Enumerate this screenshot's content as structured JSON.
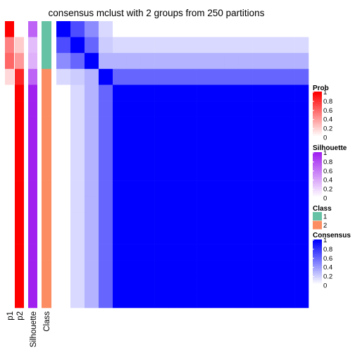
{
  "chart_data": {
    "type": "heatmap",
    "title": "consensus mclust with 2 groups from 250 partitions",
    "n_samples": 18,
    "annotation_columns": [
      "p1",
      "p2",
      "Silhouette",
      "Class"
    ],
    "annotations": {
      "p1": [
        1.0,
        0.5,
        0.6,
        0.15,
        0,
        0,
        0,
        0,
        0,
        0,
        0,
        0,
        0,
        0,
        0,
        0,
        0,
        0
      ],
      "p2": [
        0.0,
        0.2,
        0.4,
        0.85,
        1,
        1,
        1,
        1,
        1,
        1,
        1,
        1,
        1,
        1,
        1,
        1,
        1,
        1
      ],
      "Silhouette": [
        0.7,
        0.3,
        0.35,
        0.7,
        1,
        1,
        1,
        1,
        1,
        1,
        1,
        1,
        1,
        1,
        1,
        1,
        1,
        1
      ],
      "Class": [
        1,
        1,
        1,
        2,
        2,
        2,
        2,
        2,
        2,
        2,
        2,
        2,
        2,
        2,
        2,
        2,
        2,
        2
      ]
    },
    "consensus_columns": [
      [
        1.0,
        0.7,
        0.45,
        0.15,
        0,
        0,
        0,
        0,
        0,
        0,
        0,
        0,
        0,
        0,
        0,
        0,
        0,
        0
      ],
      [
        0.7,
        1.0,
        0.6,
        0.2,
        0.15,
        0.15,
        0.15,
        0.15,
        0.15,
        0.15,
        0.15,
        0.15,
        0.15,
        0.15,
        0.15,
        0.15,
        0.15,
        0.15
      ],
      [
        0.45,
        0.6,
        1.0,
        0.3,
        0.3,
        0.3,
        0.3,
        0.3,
        0.3,
        0.3,
        0.3,
        0.3,
        0.3,
        0.3,
        0.3,
        0.3,
        0.3,
        0.3
      ],
      [
        0.15,
        0.2,
        0.3,
        1.0,
        0.6,
        0.6,
        0.6,
        0.6,
        0.6,
        0.6,
        0.6,
        0.6,
        0.6,
        0.6,
        0.6,
        0.6,
        0.6,
        0.6
      ],
      [
        0,
        0.15,
        0.3,
        0.6,
        1,
        1,
        1,
        1,
        1,
        1,
        1,
        1,
        1,
        1,
        1,
        1,
        1,
        1
      ],
      [
        0,
        0.15,
        0.3,
        0.6,
        1,
        1,
        1,
        1,
        1,
        1,
        1,
        1,
        1,
        1,
        1,
        1,
        1,
        1
      ],
      [
        0,
        0.15,
        0.3,
        0.6,
        1,
        1,
        1,
        1,
        1,
        1,
        1,
        1,
        1,
        1,
        1,
        1,
        1,
        1
      ],
      [
        0,
        0.15,
        0.3,
        0.6,
        1,
        1,
        1,
        1,
        1,
        1,
        1,
        1,
        1,
        1,
        1,
        1,
        1,
        1
      ],
      [
        0,
        0.15,
        0.3,
        0.6,
        1,
        1,
        1,
        1,
        1,
        1,
        1,
        1,
        1,
        1,
        1,
        1,
        1,
        1
      ],
      [
        0,
        0.15,
        0.3,
        0.6,
        1,
        1,
        1,
        1,
        1,
        1,
        1,
        1,
        1,
        1,
        1,
        1,
        1,
        1
      ],
      [
        0,
        0.15,
        0.3,
        0.6,
        1,
        1,
        1,
        1,
        1,
        1,
        1,
        1,
        1,
        1,
        1,
        1,
        1,
        1
      ],
      [
        0,
        0.15,
        0.3,
        0.6,
        1,
        1,
        1,
        1,
        1,
        1,
        1,
        1,
        1,
        1,
        1,
        1,
        1,
        1
      ],
      [
        0,
        0.15,
        0.3,
        0.6,
        1,
        1,
        1,
        1,
        1,
        1,
        1,
        1,
        1,
        1,
        1,
        1,
        1,
        1
      ],
      [
        0,
        0.15,
        0.3,
        0.6,
        1,
        1,
        1,
        1,
        1,
        1,
        1,
        1,
        1,
        1,
        1,
        1,
        1,
        1
      ],
      [
        0,
        0.15,
        0.3,
        0.6,
        1,
        1,
        1,
        1,
        1,
        1,
        1,
        1,
        1,
        1,
        1,
        1,
        1,
        1
      ],
      [
        0,
        0.15,
        0.3,
        0.6,
        1,
        1,
        1,
        1,
        1,
        1,
        1,
        1,
        1,
        1,
        1,
        1,
        1,
        1
      ],
      [
        0,
        0.15,
        0.3,
        0.6,
        1,
        1,
        1,
        1,
        1,
        1,
        1,
        1,
        1,
        1,
        1,
        1,
        1,
        1
      ],
      [
        0,
        0.15,
        0.3,
        0.6,
        1,
        1,
        1,
        1,
        1,
        1,
        1,
        1,
        1,
        1,
        1,
        1,
        1,
        1
      ]
    ],
    "legends": [
      {
        "title": "Prob",
        "type": "continuous",
        "ticks": [
          "1",
          "0.8",
          "0.6",
          "0.4",
          "0.2",
          "0"
        ],
        "color_high": "#ff0000",
        "color_low": "#ffffff"
      },
      {
        "title": "Silhouette",
        "type": "continuous",
        "ticks": [
          "1",
          "0.8",
          "0.6",
          "0.4",
          "0.2",
          "0"
        ],
        "color_high": "#a020f0",
        "color_low": "#ffffff"
      },
      {
        "title": "Class",
        "type": "discrete",
        "labels": [
          "1",
          "2"
        ],
        "colors": [
          "#66c2a5",
          "#fc8d62"
        ]
      },
      {
        "title": "Consensus",
        "type": "continuous",
        "ticks": [
          "1",
          "0.8",
          "0.6",
          "0.4",
          "0.2",
          "0"
        ],
        "color_high": "#0000ff",
        "color_low": "#ffffff"
      }
    ],
    "colors": {
      "prob": "#ff0000",
      "silhouette": "#a020f0",
      "consensus": "#0000ff",
      "class1": "#66c2a5",
      "class2": "#fc8d62"
    }
  }
}
